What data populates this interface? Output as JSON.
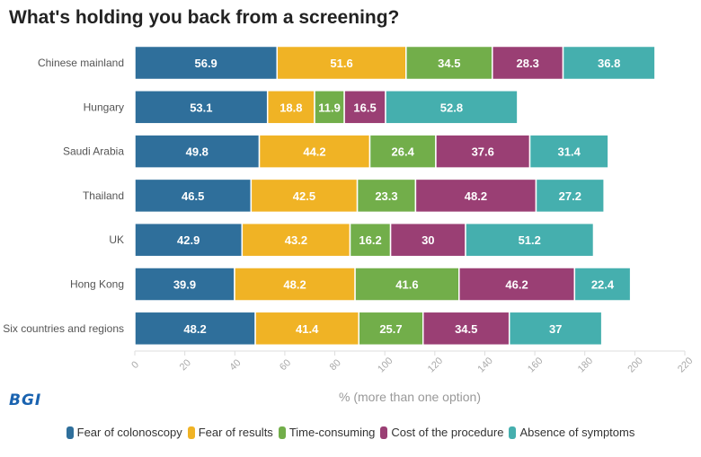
{
  "title": "What's holding you back from a screening?",
  "logo_text": "BGI",
  "chart_data": {
    "type": "bar",
    "orientation": "horizontal",
    "stacked": true,
    "title": "What's holding you back from a screening?",
    "xlabel": "% (more than one option)",
    "ylabel": "",
    "xlim": [
      0,
      220
    ],
    "xticks": [
      0,
      20,
      40,
      60,
      80,
      100,
      120,
      140,
      160,
      180,
      200,
      220
    ],
    "grid": false,
    "legend_position": "bottom",
    "categories": [
      "Chinese mainland",
      "Hungary",
      "Saudi Arabia",
      "Thailand",
      "UK",
      "Hong Kong",
      "Six countries and regions"
    ],
    "series": [
      {
        "name": "Fear of colonoscopy",
        "color": "#2f6f9b",
        "values": [
          56.9,
          53.1,
          49.8,
          46.5,
          42.9,
          39.9,
          48.2
        ]
      },
      {
        "name": "Fear of results",
        "color": "#f0b325",
        "values": [
          51.6,
          18.8,
          44.2,
          42.5,
          43.2,
          48.2,
          41.4
        ]
      },
      {
        "name": "Time-consuming",
        "color": "#72ae4a",
        "values": [
          34.5,
          11.9,
          26.4,
          23.3,
          16.2,
          41.6,
          25.7
        ]
      },
      {
        "name": "Cost of the procedure",
        "color": "#9a3f74",
        "values": [
          28.3,
          16.5,
          37.6,
          48.2,
          30,
          46.2,
          34.5
        ]
      },
      {
        "name": "Absence of symptoms",
        "color": "#45afae",
        "values": [
          36.8,
          52.8,
          31.4,
          27.2,
          51.2,
          22.4,
          37
        ]
      }
    ]
  }
}
